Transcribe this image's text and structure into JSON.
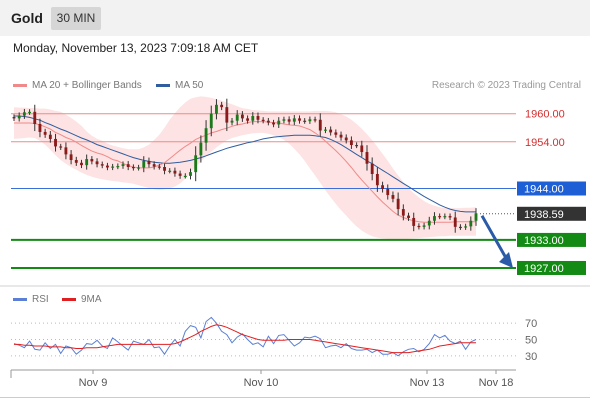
{
  "header": {
    "symbol": "Gold",
    "timeframe": "30 MIN"
  },
  "timestamp": "Monday, November 13, 2023 7:09:18 AM CET",
  "legend": {
    "ma20": {
      "label": "MA 20 + Bollinger Bands",
      "color": "#f08a8a"
    },
    "ma50": {
      "label": "MA 50",
      "color": "#2f5d9f"
    }
  },
  "credit": "Research © 2023 Trading Central",
  "rsi_legend": {
    "rsi": {
      "label": "RSI",
      "color": "#5b7fd6"
    },
    "ma9": {
      "label": "9MA",
      "color": "#e02020"
    }
  },
  "chart_data": {
    "type": "candlestick",
    "instrument": "Gold",
    "timeframe": "30 MIN",
    "x_ticks": [
      "Nov 9",
      "Nov 10",
      "Nov 13",
      "Nov 18"
    ],
    "y_range": [
      1924,
      1964
    ],
    "levels": [
      {
        "value": 1960.0,
        "label": "1960.00",
        "kind": "resistance",
        "color": "#f08a8a",
        "text_color": "#d32f2f"
      },
      {
        "value": 1954.0,
        "label": "1954.00",
        "kind": "resistance",
        "color": "#f08a8a",
        "text_color": "#d32f2f"
      },
      {
        "value": 1944.0,
        "label": "1944.00",
        "kind": "pivot",
        "color": "#3b6fd8",
        "text_color": "#ffffff",
        "box": "#1e5fd6"
      },
      {
        "value": 1933.0,
        "label": "1933.00",
        "kind": "support",
        "color": "#138a13",
        "text_color": "#ffffff",
        "box": "#138a13"
      },
      {
        "value": 1927.0,
        "label": "1927.00",
        "kind": "support",
        "color": "#138a13",
        "text_color": "#ffffff",
        "box": "#138a13"
      }
    ],
    "last_price": {
      "value": 1938.59,
      "label": "1938.59"
    },
    "forecast": {
      "from": 1938.59,
      "to": 1927.0,
      "direction": "down"
    },
    "price_series": [
      1959.0,
      1959.6,
      1960.3,
      1960.4,
      1957.8,
      1956.1,
      1955.5,
      1954.6,
      1953.0,
      1952.8,
      1951.3,
      1950.1,
      1949.5,
      1949.0,
      1950.3,
      1949.8,
      1949.2,
      1948.9,
      1948.5,
      1948.7,
      1948.8,
      1949.2,
      1948.6,
      1948.4,
      1948.5,
      1949.9,
      1949.2,
      1948.7,
      1948.6,
      1947.8,
      1947.8,
      1947.2,
      1946.7,
      1946.7,
      1947.5,
      1951.1,
      1953.8,
      1956.9,
      1960.0,
      1961.9,
      1961.4,
      1958.1,
      1958.5,
      1959.8,
      1959.0,
      1958.5,
      1959.5,
      1958.7,
      1958.5,
      1958.1,
      1957.7,
      1958.5,
      1958.8,
      1958.3,
      1959.0,
      1958.5,
      1958.4,
      1958.8,
      1958.7,
      1956.4,
      1956.6,
      1956.0,
      1955.5,
      1954.9,
      1954.3,
      1953.3,
      1953.2,
      1951.8,
      1949.3,
      1947.1,
      1944.7,
      1943.9,
      1942.6,
      1941.8,
      1939.6,
      1938.2,
      1937.7,
      1936.0,
      1935.8,
      1936.1,
      1937.1,
      1938.1,
      1938.0,
      1938.1,
      1937.8,
      1935.8,
      1935.7,
      1935.9,
      1937.1,
      1938.7
    ],
    "ma20_series": [
      1958.0,
      1958.0,
      1958.0,
      1958.0,
      1957.9,
      1957.6,
      1957.2,
      1956.7,
      1956.0,
      1955.5,
      1954.9,
      1954.5,
      1953.9,
      1953.2,
      1952.6,
      1952.0,
      1951.6,
      1951.3,
      1950.8,
      1950.2,
      1949.9,
      1949.4,
      1948.9,
      1948.6,
      1948.4,
      1948.4,
      1948.4,
      1948.6,
      1949.0,
      1949.5,
      1950.4,
      1951.3,
      1952.2,
      1953.0,
      1953.7,
      1954.5,
      1955.0,
      1955.4,
      1955.9,
      1956.2,
      1956.6,
      1956.9,
      1957.3,
      1957.6,
      1957.8,
      1958.1,
      1958.3,
      1958.3,
      1958.3,
      1958.2,
      1958.1,
      1958.0,
      1957.8,
      1957.6,
      1957.5,
      1957.4,
      1957.0,
      1956.6,
      1955.9,
      1955.1,
      1954.1,
      1953.1,
      1952.1,
      1951.0,
      1949.8,
      1948.5,
      1947.1,
      1945.8,
      1944.6,
      1943.4,
      1942.2,
      1941.1,
      1940.1,
      1939.1,
      1938.3,
      1937.8,
      1937.4,
      1937.1,
      1936.9,
      1936.8,
      1936.8,
      1936.8,
      1936.8,
      1936.8,
      1936.8,
      1936.9,
      1936.9,
      1936.9,
      1936.9,
      1936.9
    ],
    "ma50_series": [
      1959.5,
      1959.5,
      1959.4,
      1959.2,
      1958.9,
      1958.6,
      1958.1,
      1957.7,
      1957.2,
      1956.7,
      1956.3,
      1955.8,
      1955.3,
      1954.8,
      1954.4,
      1953.9,
      1953.4,
      1953.0,
      1952.6,
      1952.2,
      1951.8,
      1951.4,
      1951.0,
      1950.6,
      1950.3,
      1950.0,
      1949.8,
      1949.6,
      1949.5,
      1949.4,
      1949.4,
      1949.5,
      1949.6,
      1949.8,
      1950.0,
      1950.3,
      1950.6,
      1951.0,
      1951.4,
      1951.8,
      1952.2,
      1952.6,
      1952.9,
      1953.2,
      1953.5,
      1953.8,
      1954.0,
      1954.3,
      1954.6,
      1954.8,
      1955.0,
      1955.1,
      1955.2,
      1955.3,
      1955.4,
      1955.4,
      1955.4,
      1955.4,
      1955.3,
      1955.1,
      1954.9,
      1954.5,
      1954.0,
      1953.4,
      1952.7,
      1952.0,
      1951.3,
      1950.6,
      1949.9,
      1949.3,
      1948.6,
      1947.9,
      1947.2,
      1946.5,
      1945.8,
      1945.1,
      1944.4,
      1943.7,
      1943.0,
      1942.3,
      1941.7,
      1941.1,
      1940.5,
      1940.0,
      1939.6,
      1939.3,
      1939.1,
      1939.0,
      1939.0,
      1939.0
    ],
    "bollinger_upper": [
      1961.4,
      1961.3,
      1961.3,
      1961.2,
      1961.2,
      1961.1,
      1961.1,
      1960.9,
      1960.6,
      1960.4,
      1959.8,
      1959.1,
      1958.3,
      1957.4,
      1956.2,
      1955.3,
      1954.6,
      1954.2,
      1953.6,
      1953.2,
      1952.9,
      1952.6,
      1952.4,
      1952.4,
      1952.4,
      1952.8,
      1953.4,
      1954.4,
      1955.5,
      1957.0,
      1958.7,
      1960.1,
      1961.4,
      1962.4,
      1963.2,
      1963.5,
      1963.7,
      1963.6,
      1963.4,
      1963.1,
      1962.8,
      1962.4,
      1962.0,
      1961.6,
      1961.2,
      1961.0,
      1960.8,
      1960.7,
      1960.6,
      1960.5,
      1960.5,
      1960.5,
      1960.5,
      1960.5,
      1960.5,
      1960.5,
      1960.5,
      1960.5,
      1960.6,
      1960.6,
      1960.6,
      1960.5,
      1960.3,
      1959.9,
      1959.4,
      1958.7,
      1957.8,
      1956.8,
      1955.6,
      1954.3,
      1952.9,
      1951.4,
      1949.9,
      1948.3,
      1946.8,
      1945.4,
      1944.1,
      1943.0,
      1942.1,
      1941.3,
      1940.7,
      1940.3,
      1940.0,
      1939.8,
      1939.8,
      1939.8,
      1939.8,
      1939.9,
      1939.9,
      1940.0
    ],
    "bollinger_lower": [
      1954.6,
      1954.7,
      1954.8,
      1954.9,
      1954.8,
      1954.2,
      1953.4,
      1952.3,
      1951.1,
      1950.1,
      1949.3,
      1948.6,
      1948.0,
      1947.4,
      1946.9,
      1946.5,
      1946.2,
      1946.0,
      1945.8,
      1945.6,
      1945.5,
      1945.3,
      1945.2,
      1945.0,
      1944.7,
      1944.4,
      1944.1,
      1943.8,
      1943.7,
      1943.8,
      1944.0,
      1944.4,
      1945.1,
      1946.1,
      1947.4,
      1948.6,
      1949.8,
      1950.9,
      1951.9,
      1952.8,
      1953.6,
      1954.3,
      1954.8,
      1955.1,
      1955.4,
      1955.6,
      1955.8,
      1955.9,
      1955.9,
      1955.7,
      1955.4,
      1955.0,
      1954.4,
      1953.6,
      1952.5,
      1951.3,
      1949.9,
      1948.3,
      1946.8,
      1945.2,
      1943.6,
      1942.1,
      1940.7,
      1939.4,
      1938.2,
      1937.0,
      1935.9,
      1935.0,
      1934.3,
      1933.8,
      1933.5,
      1933.3,
      1933.2,
      1933.2,
      1933.2,
      1933.2,
      1933.2,
      1933.3,
      1933.4,
      1933.5,
      1933.6,
      1933.7,
      1933.8,
      1933.8,
      1933.9,
      1933.9,
      1933.9,
      1933.9,
      1933.9,
      1933.9
    ],
    "rsi": {
      "y_ticks": [
        "70",
        "50",
        "30"
      ],
      "y_values": [
        70,
        50,
        30
      ],
      "range": [
        20,
        80
      ],
      "rsi_series": [
        45,
        43,
        40,
        48,
        38,
        37,
        46,
        39,
        44,
        33,
        42,
        40,
        32,
        37,
        45,
        44,
        49,
        42,
        39,
        52,
        47,
        42,
        37,
        48,
        46,
        44,
        50,
        40,
        41,
        32,
        42,
        50,
        42,
        60,
        67,
        65,
        52,
        72,
        77,
        70,
        60,
        56,
        46,
        53,
        57,
        50,
        44,
        46,
        41,
        54,
        45,
        55,
        56,
        49,
        42,
        46,
        53,
        52,
        54,
        51,
        40,
        42,
        43,
        40,
        45,
        39,
        37,
        37,
        38,
        34,
        37,
        32,
        32,
        34,
        30,
        35,
        38,
        39,
        35,
        38,
        45,
        56,
        52,
        55,
        48,
        45,
        48,
        38,
        47,
        50
      ],
      "ma9_series": [
        44,
        44,
        43,
        43,
        42,
        42,
        42,
        41,
        41,
        41,
        40,
        40,
        39,
        39,
        40,
        40,
        40,
        41,
        42,
        43,
        44,
        44,
        44,
        44,
        44,
        44,
        44,
        44,
        44,
        44,
        44,
        45,
        47,
        50,
        53,
        56,
        60,
        63,
        66,
        68,
        67,
        65,
        62,
        59,
        56,
        54,
        52,
        50,
        49,
        49,
        49,
        49,
        49,
        50,
        50,
        50,
        50,
        50,
        49,
        48,
        47,
        46,
        45,
        44,
        43,
        42,
        41,
        40,
        39,
        38,
        37,
        36,
        35,
        34,
        34,
        34,
        34,
        35,
        36,
        37,
        38,
        40,
        42,
        43,
        44,
        45,
        46,
        46,
        46,
        46
      ]
    }
  }
}
